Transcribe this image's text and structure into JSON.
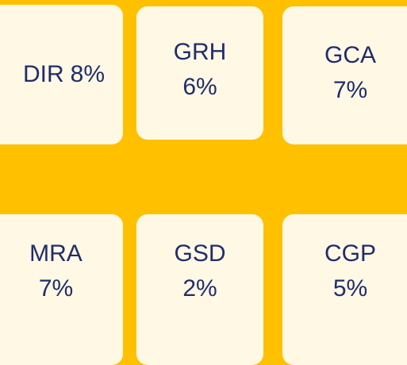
{
  "tiles": [
    {
      "name": "DIR",
      "value": "8%"
    },
    {
      "name": "GRH",
      "value": "6%"
    },
    {
      "name": "GCA",
      "value": "7%"
    },
    {
      "name": "MRA",
      "value": "7%"
    },
    {
      "name": "GSD",
      "value": "2%"
    },
    {
      "name": "CGP",
      "value": "5%"
    }
  ]
}
